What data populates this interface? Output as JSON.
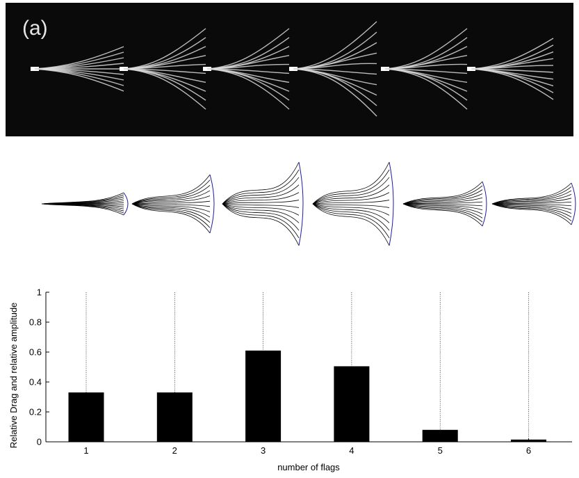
{
  "panel": {
    "label": "(a)"
  },
  "chart_data": {
    "type": "bar",
    "categories": [
      "1",
      "2",
      "3",
      "4",
      "5",
      "6"
    ],
    "values": [
      0.33,
      0.33,
      0.61,
      0.505,
      0.08,
      0.015
    ],
    "xlabel": "number of flags",
    "ylabel": "Relative Drag and relative amplitude",
    "ylim": [
      0,
      1
    ],
    "yticks": [
      0,
      0.2,
      0.4,
      0.6,
      0.8,
      1
    ],
    "ytick_labels": [
      "0",
      "0.2",
      "0.4",
      "0.6",
      "0.8",
      "1"
    ],
    "bar_color": "#000000",
    "guide_lines": "dotted",
    "grid": false
  },
  "colors": {
    "photo_bg": "#0a0a0a",
    "filament": "#dcdcdc",
    "sim_line": "#000000",
    "sim_edge": "#1a1aa6"
  }
}
